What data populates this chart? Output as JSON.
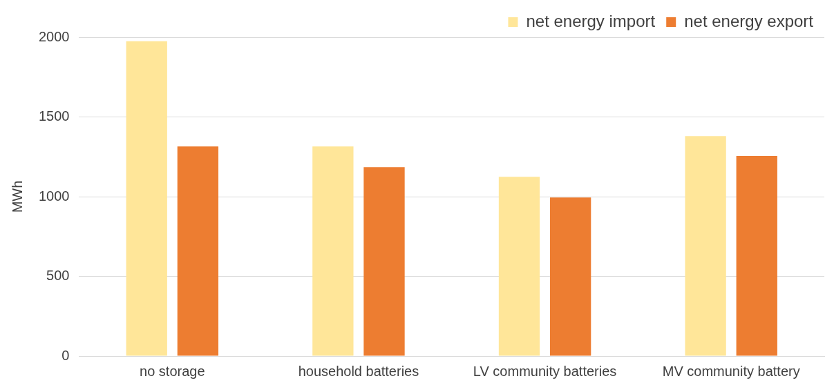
{
  "chart_data": {
    "type": "bar",
    "ylabel": "MWh",
    "categories": [
      "no storage",
      "household batteries",
      "LV community batteries",
      "MV community battery"
    ],
    "series": [
      {
        "name": "net energy import",
        "color": "#ffe699",
        "values": [
          1975,
          1315,
          1125,
          1380
        ]
      },
      {
        "name": "net energy export",
        "color": "#ed7d31",
        "values": [
          1315,
          1185,
          995,
          1255
        ]
      }
    ],
    "ylim": [
      0,
      2000
    ],
    "yticks": [
      0,
      500,
      1000,
      1500,
      2000
    ],
    "grid": "y",
    "legend": "top right"
  }
}
